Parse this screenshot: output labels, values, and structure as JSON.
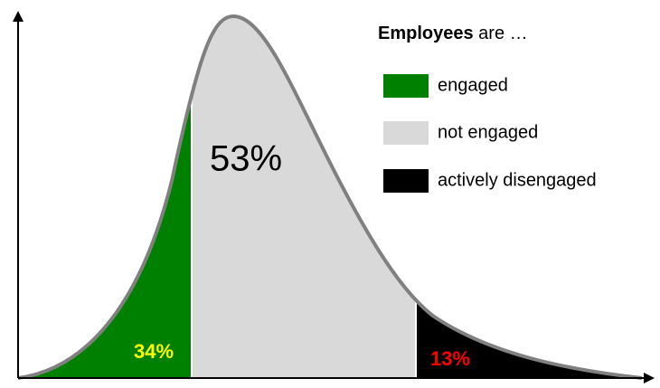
{
  "legend": {
    "title_bold": "Employees",
    "title_rest": "are …"
  },
  "regions": [
    {
      "name": "engaged",
      "label": "34%",
      "color": "#008000",
      "label_color": "#ffff00"
    },
    {
      "name": "not engaged",
      "label": "53%",
      "color": "#d9d9d9",
      "label_color": "#000000"
    },
    {
      "name": "actively disengaged",
      "label": "13%",
      "color": "#000000",
      "label_color": "#ff0000"
    }
  ]
}
